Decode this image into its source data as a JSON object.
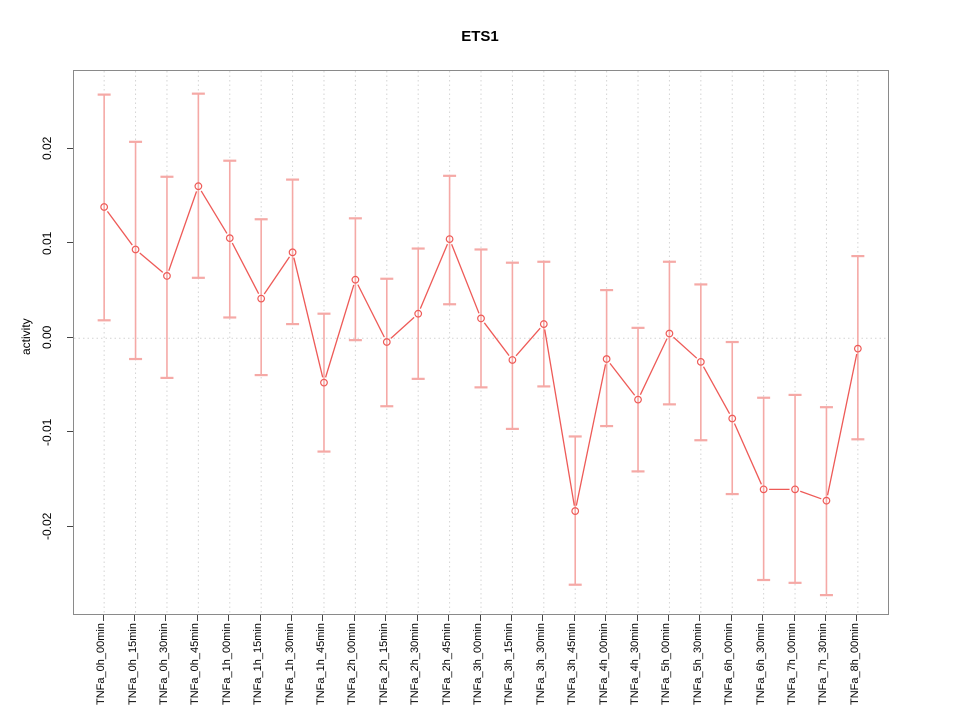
{
  "title": "ETS1",
  "y_axis": {
    "label": "activity",
    "tick_labels": [
      "0.02",
      "0.01",
      "0.00",
      "-0.01",
      "-0.02"
    ],
    "tick_values": [
      0.02,
      0.01,
      0.0,
      -0.01,
      -0.02
    ]
  },
  "colors": {
    "series": "#ee5a57",
    "error_bar": "#f5a9a6",
    "grid": "#d4d4d4",
    "axis_box": "#8a8a8a",
    "tick": "#444444",
    "text": "#000000",
    "background": "#ffffff"
  },
  "chart_data": {
    "type": "line",
    "title": "ETS1",
    "xlabel": "",
    "ylabel": "activity",
    "ylim": [
      -0.0292,
      0.0283
    ],
    "y_ticks": [
      0.02,
      0.01,
      0.0,
      -0.01,
      -0.02
    ],
    "marker": "open-circle",
    "error_bars": true,
    "legend": "none",
    "grid": {
      "vertical_dotted_per_category": true,
      "horizontal_dotted_zero_line": true
    },
    "categories": [
      "TNFa_0h_00min",
      "TNFa_0h_15min",
      "TNFa_0h_30min",
      "TNFa_0h_45min",
      "TNFa_1h_00min",
      "TNFa_1h_15min",
      "TNFa_1h_30min",
      "TNFa_1h_45min",
      "TNFa_2h_00min",
      "TNFa_2h_15min",
      "TNFa_2h_30min",
      "TNFa_2h_45min",
      "TNFa_3h_00min",
      "TNFa_3h_15min",
      "TNFa_3h_30min",
      "TNFa_3h_45min",
      "TNFa_4h_00min",
      "TNFa_4h_30min",
      "TNFa_5h_00min",
      "TNFa_5h_30min",
      "TNFa_6h_00min",
      "TNFa_6h_30min",
      "TNFa_7h_00min",
      "TNFa_7h_30min",
      "TNFa_8h_00min"
    ],
    "series": [
      {
        "name": "ETS1 activity",
        "values": [
          0.0139,
          0.0094,
          0.0066,
          0.0161,
          0.0106,
          0.0042,
          0.0091,
          -0.0047,
          0.0062,
          -0.0004,
          0.0026,
          0.0105,
          0.0021,
          -0.0023,
          0.0015,
          -0.0183,
          -0.0022,
          -0.0065,
          0.0005,
          -0.0025,
          -0.0085,
          -0.016,
          -0.016,
          -0.0172,
          -0.0011
        ],
        "lower": [
          0.0019,
          -0.0022,
          -0.0042,
          0.0064,
          0.0022,
          -0.0039,
          0.0015,
          -0.012,
          -0.0002,
          -0.0072,
          -0.0043,
          0.0036,
          -0.0052,
          -0.0096,
          -0.0051,
          -0.0261,
          -0.0093,
          -0.0141,
          -0.007,
          -0.0108,
          -0.0165,
          -0.0256,
          -0.0259,
          -0.0272,
          -0.0107
        ],
        "upper": [
          0.0258,
          0.0208,
          0.0171,
          0.0259,
          0.0188,
          0.0126,
          0.0168,
          0.0026,
          0.0127,
          0.0063,
          0.0095,
          0.0172,
          0.0094,
          0.008,
          0.0081,
          -0.0104,
          0.0051,
          0.0011,
          0.0081,
          0.0057,
          -0.0004,
          -0.0063,
          -0.006,
          -0.0073,
          0.0087
        ]
      }
    ]
  }
}
